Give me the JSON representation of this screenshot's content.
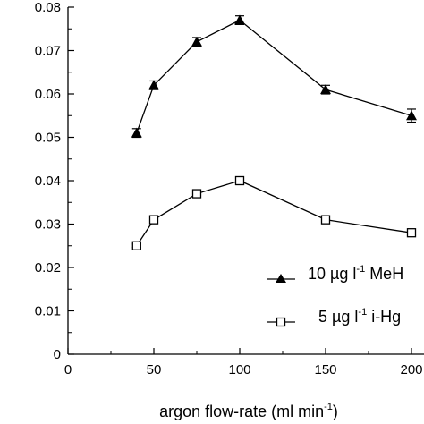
{
  "chart_data": {
    "type": "line",
    "title": "",
    "xlabel": {
      "main": "argon flow-rate (ml min",
      "sup": "-1",
      "tail": ")"
    },
    "ylabel": "",
    "xlim": [
      0,
      200
    ],
    "ylim": [
      0,
      0.08
    ],
    "xticks": [
      0,
      50,
      100,
      150,
      200
    ],
    "xtick_labels": [
      "0",
      "50",
      "100",
      "150",
      "200"
    ],
    "yticks": [
      0,
      0.01,
      0.02,
      0.03,
      0.04,
      0.05,
      0.06,
      0.07,
      0.08
    ],
    "ytick_labels": [
      "0",
      "0.01",
      "0.02",
      "0.03",
      "0.04",
      "0.05",
      "0.06",
      "0.07",
      "0.08"
    ],
    "grid": false,
    "legend_position": "lower-right",
    "series": [
      {
        "name": {
          "pre": "10 µg l",
          "sup": "-1",
          "post": " MeH"
        },
        "marker": "filled-triangle",
        "color": "#000000",
        "x": [
          40,
          50,
          75,
          100,
          150,
          200
        ],
        "y": [
          0.051,
          0.062,
          0.072,
          0.077,
          0.061,
          0.055
        ],
        "error": [
          0.001,
          0.001,
          0.001,
          0.001,
          0.001,
          0.0015
        ]
      },
      {
        "name": {
          "pre": "5 µg l",
          "sup": "-1",
          "post": " i-Hg"
        },
        "marker": "open-square",
        "color": "#000000",
        "x": [
          40,
          50,
          75,
          100,
          150,
          200
        ],
        "y": [
          0.025,
          0.031,
          0.037,
          0.04,
          0.031,
          0.028
        ],
        "error": [
          0.0004,
          0.0006,
          0.0006,
          0.0006,
          0.0006,
          0.0005
        ]
      }
    ]
  }
}
